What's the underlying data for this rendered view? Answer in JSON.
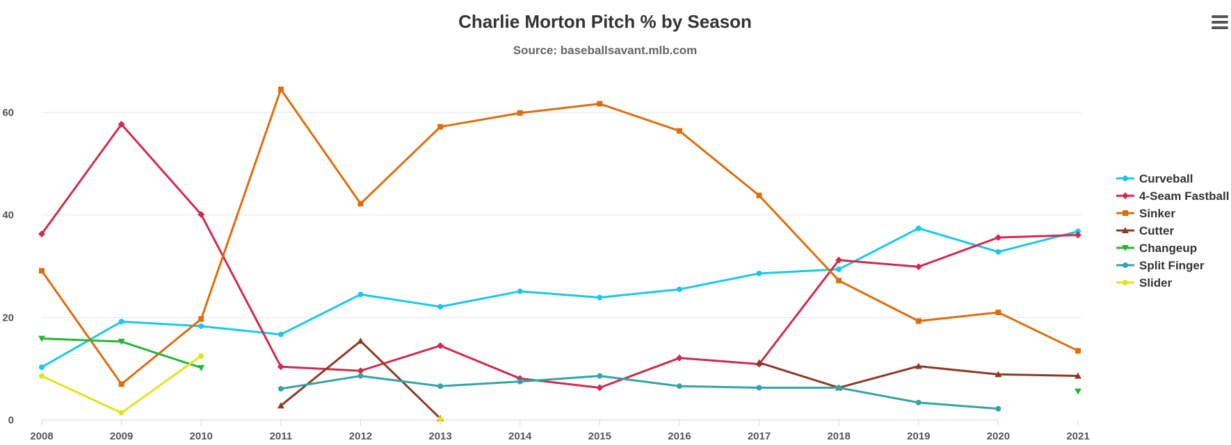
{
  "chart_data": {
    "type": "line",
    "title": "Charlie Morton Pitch % by Season",
    "subtitle": "Source: baseballsavant.mlb.com",
    "xlabel": "",
    "ylabel": "",
    "categories": [
      "2008",
      "2009",
      "2010",
      "2011",
      "2012",
      "2013",
      "2014",
      "2015",
      "2016",
      "2017",
      "2018",
      "2019",
      "2020",
      "2021"
    ],
    "ylim": [
      0,
      60
    ],
    "yticks": [
      0,
      20,
      40,
      60
    ],
    "grid": true,
    "legend_position": "right",
    "series": [
      {
        "name": "Curveball",
        "color": "#1ac8e8",
        "marker": "circle",
        "values": [
          10.3,
          19.2,
          18.3,
          16.7,
          24.5,
          22.1,
          25.1,
          23.9,
          25.5,
          28.6,
          29.4,
          37.4,
          32.8,
          36.8
        ]
      },
      {
        "name": "4-Seam Fastball",
        "color": "#d02a4e",
        "marker": "diamond",
        "values": [
          36.3,
          57.7,
          40.1,
          10.4,
          9.6,
          14.5,
          8.1,
          6.3,
          12.1,
          10.9,
          31.2,
          29.9,
          35.6,
          36.1
        ]
      },
      {
        "name": "Sinker",
        "color": "#e06c0c",
        "marker": "square",
        "values": [
          29.1,
          7.0,
          19.7,
          64.5,
          42.2,
          57.2,
          59.9,
          61.7,
          56.4,
          43.8,
          27.2,
          19.3,
          21.0,
          13.5
        ]
      },
      {
        "name": "Cutter",
        "color": "#8c3a28",
        "marker": "triangle",
        "values": [
          null,
          null,
          null,
          2.8,
          15.4,
          0.3,
          null,
          null,
          null,
          11.2,
          6.3,
          10.5,
          8.9,
          8.6
        ]
      },
      {
        "name": "Changeup",
        "color": "#27b536",
        "marker": "triangle-down",
        "values": [
          15.9,
          15.3,
          10.2,
          null,
          null,
          null,
          null,
          null,
          null,
          null,
          null,
          null,
          null,
          5.6
        ]
      },
      {
        "name": "Split Finger",
        "color": "#36a3a5",
        "marker": "circle",
        "values": [
          null,
          null,
          null,
          6.1,
          8.6,
          6.6,
          7.5,
          8.6,
          6.6,
          6.3,
          6.3,
          3.4,
          2.2,
          null
        ]
      },
      {
        "name": "Slider",
        "color": "#e3e31b",
        "marker": "circle",
        "values": [
          8.6,
          1.4,
          12.5,
          null,
          null,
          0.2,
          null,
          null,
          null,
          null,
          null,
          null,
          null,
          null
        ]
      }
    ]
  }
}
